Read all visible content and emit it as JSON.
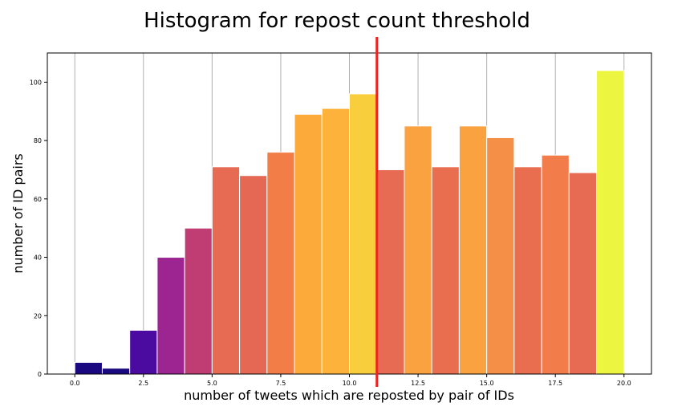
{
  "chart_data": {
    "type": "bar",
    "title": "Histogram for repost count threshold",
    "xlabel": "number of tweets which are reposted by pair of IDs",
    "ylabel": "number of ID pairs",
    "xlim": [
      -1,
      21
    ],
    "ylim": [
      0,
      110
    ],
    "grid": "vertical",
    "x_ticks": [
      "0.0",
      "2.5",
      "5.0",
      "7.5",
      "10.0",
      "12.5",
      "15.0",
      "17.5",
      "20.0"
    ],
    "y_ticks": [
      "0",
      "20",
      "40",
      "60",
      "80",
      "100"
    ],
    "x_tick_values": [
      0,
      2.5,
      5,
      7.5,
      10,
      12.5,
      15,
      17.5,
      20
    ],
    "y_tick_values": [
      0,
      20,
      40,
      60,
      80,
      100
    ],
    "bins": [
      {
        "start": 0,
        "end": 1,
        "count": 4,
        "color": "#1a0880"
      },
      {
        "start": 1,
        "end": 2,
        "count": 2,
        "color": "#1a0880"
      },
      {
        "start": 2,
        "end": 3,
        "count": 15,
        "color": "#4b0aa0"
      },
      {
        "start": 3,
        "end": 4,
        "count": 40,
        "color": "#9c2591"
      },
      {
        "start": 4,
        "end": 5,
        "count": 50,
        "color": "#c03d74"
      },
      {
        "start": 5,
        "end": 6,
        "count": 71,
        "color": "#e76b53"
      },
      {
        "start": 6,
        "end": 7,
        "count": 68,
        "color": "#e46853"
      },
      {
        "start": 7,
        "end": 8,
        "count": 76,
        "color": "#f27d47"
      },
      {
        "start": 8,
        "end": 9,
        "count": 89,
        "color": "#fcaa3a"
      },
      {
        "start": 9,
        "end": 10,
        "count": 91,
        "color": "#fcb23b"
      },
      {
        "start": 10,
        "end": 11,
        "count": 96,
        "color": "#f9ce3c"
      },
      {
        "start": 11,
        "end": 12,
        "count": 70,
        "color": "#e76b53"
      },
      {
        "start": 12,
        "end": 13,
        "count": 85,
        "color": "#f9a23f"
      },
      {
        "start": 13,
        "end": 14,
        "count": 71,
        "color": "#e96e50"
      },
      {
        "start": 14,
        "end": 15,
        "count": 85,
        "color": "#f9a23f"
      },
      {
        "start": 15,
        "end": 16,
        "count": 81,
        "color": "#f58e46"
      },
      {
        "start": 16,
        "end": 17,
        "count": 71,
        "color": "#e96e50"
      },
      {
        "start": 17,
        "end": 18,
        "count": 75,
        "color": "#f27d4a"
      },
      {
        "start": 18,
        "end": 19,
        "count": 69,
        "color": "#e76b53"
      },
      {
        "start": 19,
        "end": 20,
        "count": 104,
        "color": "#ecf640"
      }
    ],
    "threshold_line": {
      "x": 11,
      "color": "#ee2222"
    }
  }
}
